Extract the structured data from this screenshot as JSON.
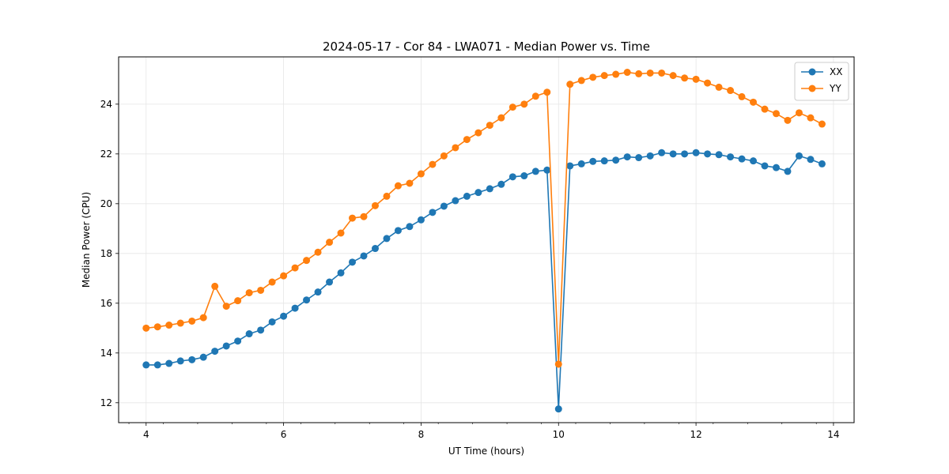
{
  "chart_data": {
    "type": "line",
    "title": "2024-05-17 - Cor 84 - LWA071 - Median Power vs. Time",
    "xlabel": "UT Time (hours)",
    "ylabel": "Median Power (CPU)",
    "xlim": [
      3.6,
      14.3
    ],
    "ylim": [
      11.2,
      25.9
    ],
    "xticks": [
      4,
      6,
      8,
      10,
      12,
      14
    ],
    "yticks": [
      12,
      14,
      16,
      18,
      20,
      22,
      24
    ],
    "grid": true,
    "legend_position": "top-right",
    "x": [
      4.0,
      4.1667,
      4.3333,
      4.5,
      4.6667,
      4.8333,
      5.0,
      5.1667,
      5.3333,
      5.5,
      5.6667,
      5.8333,
      6.0,
      6.1667,
      6.3333,
      6.5,
      6.6667,
      6.8333,
      7.0,
      7.1667,
      7.3333,
      7.5,
      7.6667,
      7.8333,
      8.0,
      8.1667,
      8.3333,
      8.5,
      8.6667,
      8.8333,
      9.0,
      9.1667,
      9.3333,
      9.5,
      9.6667,
      9.8333,
      10.0,
      10.1667,
      10.3333,
      10.5,
      10.6667,
      10.8333,
      11.0,
      11.1667,
      11.3333,
      11.5,
      11.6667,
      11.8333,
      12.0,
      12.1667,
      12.3333,
      12.5,
      12.6667,
      12.8333,
      13.0,
      13.1667,
      13.3333,
      13.5,
      13.6667,
      13.8333
    ],
    "series": [
      {
        "name": "XX",
        "color": "#1f77b4",
        "values": [
          13.52,
          13.52,
          13.58,
          13.68,
          13.73,
          13.83,
          14.07,
          14.28,
          14.48,
          14.77,
          14.92,
          15.25,
          15.48,
          15.8,
          16.13,
          16.45,
          16.85,
          17.22,
          17.65,
          17.9,
          18.2,
          18.6,
          18.92,
          19.08,
          19.35,
          19.65,
          19.9,
          20.12,
          20.3,
          20.45,
          20.6,
          20.78,
          21.08,
          21.12,
          21.3,
          21.35,
          11.75,
          21.52,
          21.6,
          21.7,
          21.72,
          21.75,
          21.88,
          21.85,
          21.92,
          22.05,
          22.0,
          22.0,
          22.05,
          22.0,
          21.97,
          21.88,
          21.8,
          21.72,
          21.52,
          21.45,
          21.3,
          21.92,
          21.78,
          21.6
        ]
      },
      {
        "name": "YY",
        "color": "#ff7f0e",
        "values": [
          15.0,
          15.05,
          15.12,
          15.2,
          15.28,
          15.42,
          16.68,
          15.88,
          16.1,
          16.42,
          16.52,
          16.85,
          17.1,
          17.42,
          17.72,
          18.05,
          18.45,
          18.82,
          19.42,
          19.48,
          19.92,
          20.3,
          20.72,
          20.82,
          21.2,
          21.58,
          21.92,
          22.25,
          22.58,
          22.85,
          23.15,
          23.45,
          23.88,
          24.0,
          24.32,
          24.48,
          13.55,
          24.8,
          24.95,
          25.08,
          25.15,
          25.2,
          25.28,
          25.22,
          25.25,
          25.25,
          25.15,
          25.05,
          25.0,
          24.85,
          24.68,
          24.55,
          24.3,
          24.08,
          23.8,
          23.62,
          23.35,
          23.65,
          23.45,
          23.2
        ]
      }
    ]
  }
}
